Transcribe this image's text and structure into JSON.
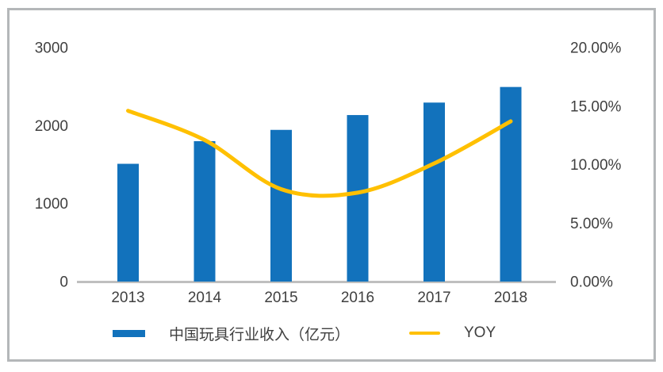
{
  "chart_data": {
    "type": "bar+line combo",
    "categories": [
      "2013",
      "2014",
      "2015",
      "2016",
      "2017",
      "2018"
    ],
    "series": [
      {
        "name": "中国玩具行业收入（亿元）",
        "type": "bar",
        "axis": "left",
        "color": "#1272BC",
        "values": [
          1510,
          1800,
          1945,
          2135,
          2295,
          2495
        ]
      },
      {
        "name": "YOY",
        "type": "line",
        "axis": "right",
        "color": "#FFC000",
        "values": [
          14.6,
          12.1,
          7.9,
          7.6,
          10.1,
          13.7
        ]
      }
    ],
    "title": "",
    "xlabel": "",
    "ylabel": "",
    "left_axis": {
      "ticks": [
        "0",
        "1000",
        "2000",
        "3000"
      ],
      "min": 0,
      "max": 3000
    },
    "right_axis": {
      "ticks": [
        "0.00%",
        "5.00%",
        "10.00%",
        "15.00%",
        "20.00%"
      ],
      "min": 0,
      "max": 20
    },
    "grid": false,
    "legend_position": "bottom",
    "line_smooth": true
  },
  "colors": {
    "bar_blue": "#1272BC",
    "line_yellow": "#FFC000",
    "axis_line": "#BFBFBF",
    "tick_text": "#404040",
    "panel_border": "#B4B7B9",
    "background": "#FFFFFF"
  }
}
